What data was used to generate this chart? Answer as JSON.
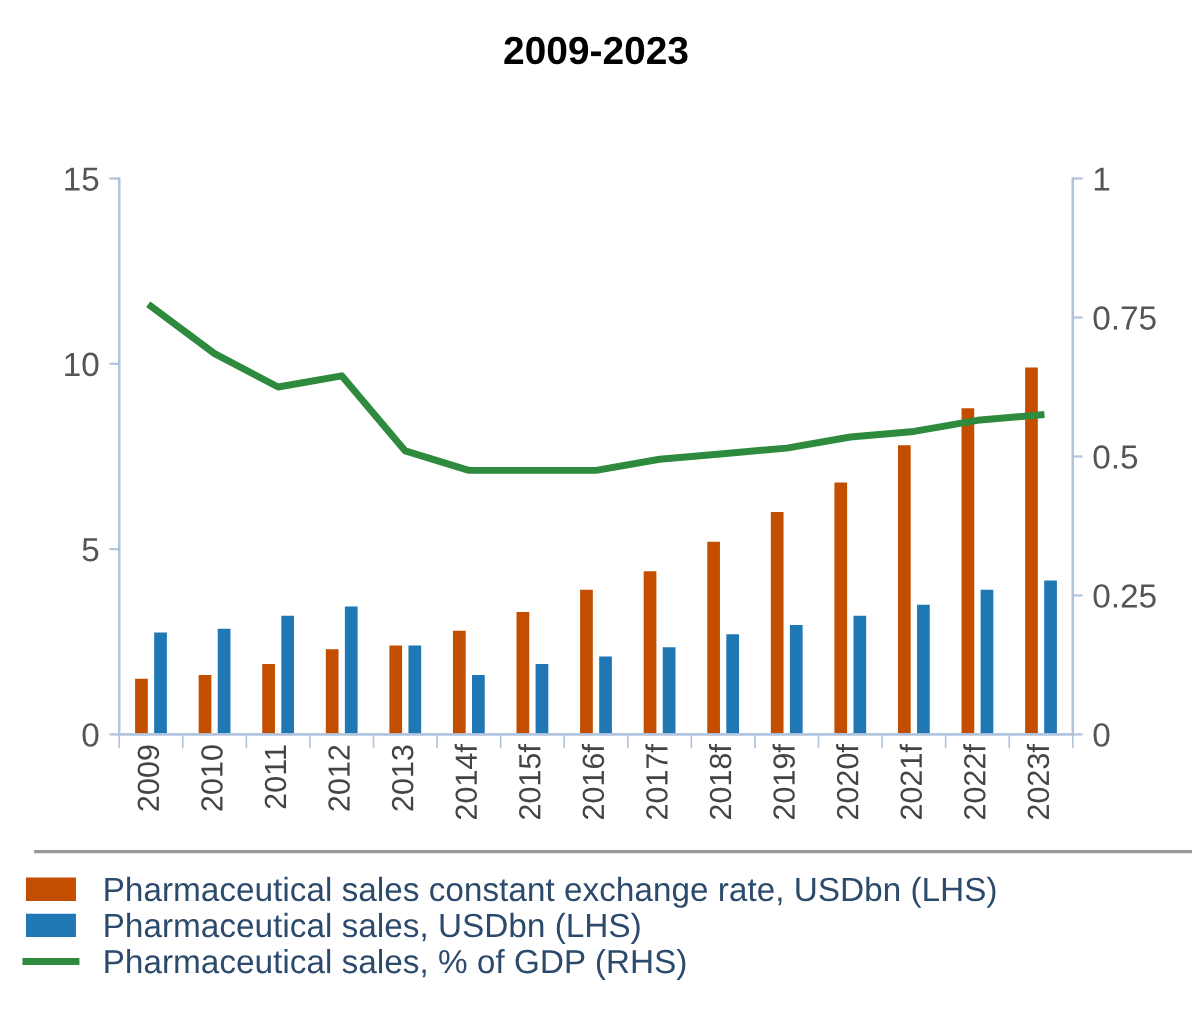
{
  "chart_data": {
    "type": "bar",
    "title": "2009-2023",
    "categories": [
      "2009",
      "2010",
      "2011",
      "2012",
      "2013",
      "2014f",
      "2015f",
      "2016f",
      "2017f",
      "2018f",
      "2019f",
      "2020f",
      "2021f",
      "2022f",
      "2023f"
    ],
    "series": [
      {
        "name": "Pharmaceutical sales constant exchange rate, USDbn (LHS)",
        "color": "#c44e00",
        "values": [
          1.5,
          1.6,
          1.9,
          2.3,
          2.4,
          2.8,
          3.3,
          3.9,
          4.4,
          5.2,
          6.0,
          6.8,
          7.8,
          8.8,
          9.9
        ]
      },
      {
        "name": "Pharmaceutical sales, USDbn (LHS)",
        "color": "#1f77b4",
        "values": [
          2.75,
          2.85,
          3.2,
          3.45,
          2.4,
          1.6,
          1.9,
          2.1,
          2.35,
          2.7,
          2.95,
          3.2,
          3.5,
          3.9,
          4.15
        ]
      },
      {
        "name": "Pharmaceutical sales, % of GDP (RHS)",
        "color": "#2e8b3e",
        "type": "line",
        "axis": "y2",
        "values": [
          0.77,
          0.685,
          0.625,
          0.645,
          0.51,
          0.475,
          0.475,
          0.475,
          0.495,
          0.505,
          0.515,
          0.535,
          0.545,
          0.565,
          0.575
        ]
      }
    ],
    "ylim": [
      0,
      15
    ],
    "yticks": [
      0,
      5,
      10,
      15
    ],
    "y2lim": [
      0,
      1
    ],
    "y2ticks": [
      0,
      0.25,
      0.5,
      0.75,
      1
    ],
    "grid": false,
    "legend": "bottom",
    "marker": "none",
    "line_style": "solid"
  }
}
